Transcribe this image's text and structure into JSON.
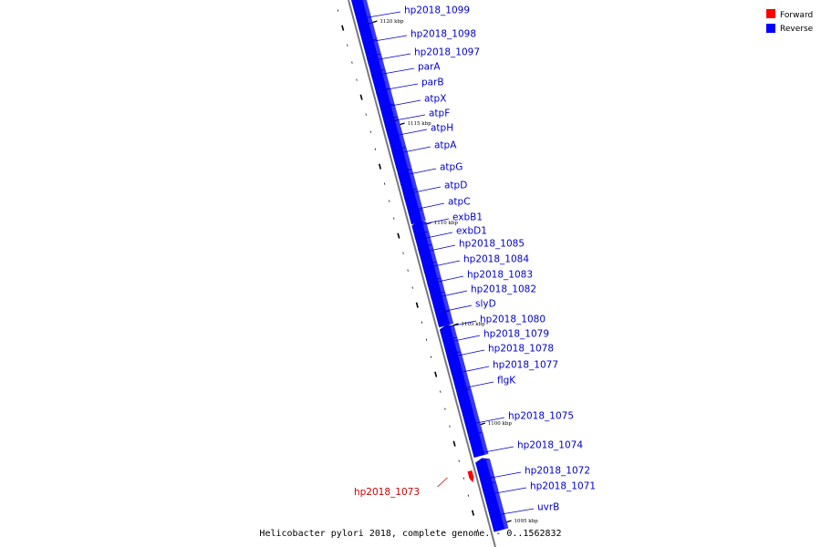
{
  "title": "Helicobacter pylori 2018, complete genome. - 0..1562832",
  "colors": {
    "forward": "#ff0000",
    "reverse": "#0000ff",
    "axis": "#7a7a7a",
    "label_forward": "#cc0000",
    "label_reverse": "#0000cc"
  },
  "legend": [
    {
      "label": "Forward",
      "color": "#ff0000"
    },
    {
      "label": "Reverse",
      "color": "#0000ff"
    }
  ],
  "ticks": [
    "1095 kbp",
    "1100 kbp",
    "1105 kbp",
    "1110 kbp",
    "1115 kbp",
    "1120 kbp"
  ],
  "genes": [
    {
      "label": "hp2018_1099",
      "strand": "reverse"
    },
    {
      "label": "hp2018_1098",
      "strand": "reverse"
    },
    {
      "label": "hp2018_1097",
      "strand": "reverse"
    },
    {
      "label": "parA",
      "strand": "reverse"
    },
    {
      "label": "parB",
      "strand": "reverse"
    },
    {
      "label": "atpX",
      "strand": "reverse"
    },
    {
      "label": "atpF",
      "strand": "reverse"
    },
    {
      "label": "atpH",
      "strand": "reverse"
    },
    {
      "label": "atpA",
      "strand": "reverse"
    },
    {
      "label": "atpG",
      "strand": "reverse"
    },
    {
      "label": "atpD",
      "strand": "reverse"
    },
    {
      "label": "atpC",
      "strand": "reverse"
    },
    {
      "label": "exbB1",
      "strand": "reverse"
    },
    {
      "label": "exbD1",
      "strand": "reverse"
    },
    {
      "label": "hp2018_1085",
      "strand": "reverse"
    },
    {
      "label": "hp2018_1084",
      "strand": "reverse"
    },
    {
      "label": "hp2018_1083",
      "strand": "reverse"
    },
    {
      "label": "hp2018_1082",
      "strand": "reverse"
    },
    {
      "label": "slyD",
      "strand": "reverse"
    },
    {
      "label": "hp2018_1080",
      "strand": "reverse"
    },
    {
      "label": "hp2018_1079",
      "strand": "reverse"
    },
    {
      "label": "hp2018_1078",
      "strand": "reverse"
    },
    {
      "label": "hp2018_1077",
      "strand": "reverse"
    },
    {
      "label": "flgK",
      "strand": "reverse"
    },
    {
      "label": "hp2018_1075",
      "strand": "reverse"
    },
    {
      "label": "hp2018_1074",
      "strand": "reverse"
    },
    {
      "label": "hp2018_1073",
      "strand": "forward"
    },
    {
      "label": "hp2018_1072",
      "strand": "reverse"
    },
    {
      "label": "hp2018_1071",
      "strand": "reverse"
    },
    {
      "label": "uvrB",
      "strand": "reverse"
    }
  ]
}
